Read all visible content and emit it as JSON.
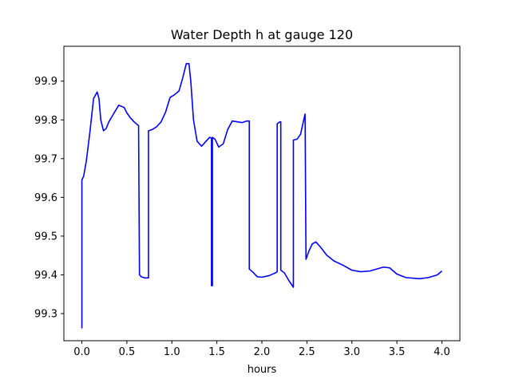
{
  "chart_data": {
    "type": "line",
    "title": "Water Depth h at gauge 120",
    "xlabel": "hours",
    "ylabel": "",
    "xlim": [
      -0.2,
      4.2
    ],
    "ylim": [
      99.23,
      99.99
    ],
    "xticks": [
      0.0,
      0.5,
      1.0,
      1.5,
      2.0,
      2.5,
      3.0,
      3.5,
      4.0
    ],
    "xtick_labels": [
      "0.0",
      "0.5",
      "1.0",
      "1.5",
      "2.0",
      "2.5",
      "3.0",
      "3.5",
      "4.0"
    ],
    "yticks": [
      99.3,
      99.4,
      99.5,
      99.6,
      99.7,
      99.8,
      99.9
    ],
    "ytick_labels": [
      "99.3",
      "99.4",
      "99.5",
      "99.6",
      "99.7",
      "99.8",
      "99.9"
    ],
    "grid": false,
    "line_color": "#0000ff",
    "series": [
      {
        "x": [
          0.0,
          0.0,
          0.02,
          0.05,
          0.09,
          0.13,
          0.17,
          0.19,
          0.21,
          0.24,
          0.27,
          0.3,
          0.35,
          0.41,
          0.47,
          0.5,
          0.54,
          0.58,
          0.63,
          0.64,
          0.64,
          0.66,
          0.7,
          0.74,
          0.74,
          0.78,
          0.83,
          0.88,
          0.93,
          0.98,
          1.03,
          1.08,
          1.12,
          1.16,
          1.19,
          1.21,
          1.24,
          1.28,
          1.33,
          1.38,
          1.42,
          1.44,
          1.44,
          1.45,
          1.45,
          1.48,
          1.52,
          1.57,
          1.62,
          1.67,
          1.73,
          1.78,
          1.83,
          1.86,
          1.86,
          1.9,
          1.95,
          2.0,
          2.08,
          2.15,
          2.17,
          2.17,
          2.2,
          2.21,
          2.21,
          2.25,
          2.3,
          2.35,
          2.35,
          2.39,
          2.43,
          2.46,
          2.48,
          2.49,
          2.52,
          2.56,
          2.6,
          2.65,
          2.72,
          2.8,
          2.9,
          3.0,
          3.1,
          3.2,
          3.35,
          3.42,
          3.5,
          3.6,
          3.75,
          3.85,
          3.95,
          4.0
        ],
        "y": [
          99.262,
          99.645,
          99.655,
          99.695,
          99.77,
          99.855,
          99.872,
          99.855,
          99.8,
          99.772,
          99.778,
          99.795,
          99.815,
          99.838,
          99.832,
          99.818,
          99.805,
          99.795,
          99.785,
          99.4,
          99.4,
          99.395,
          99.392,
          99.392,
          99.772,
          99.775,
          99.782,
          99.795,
          99.82,
          99.858,
          99.865,
          99.875,
          99.908,
          99.945,
          99.945,
          99.9,
          99.8,
          99.745,
          99.732,
          99.745,
          99.755,
          99.753,
          99.372,
          99.372,
          99.755,
          99.75,
          99.73,
          99.738,
          99.775,
          99.797,
          99.795,
          99.793,
          99.797,
          99.797,
          99.415,
          99.407,
          99.395,
          99.394,
          99.398,
          99.405,
          99.408,
          99.79,
          99.795,
          99.795,
          99.412,
          99.405,
          99.385,
          99.368,
          99.748,
          99.75,
          99.763,
          99.795,
          99.815,
          99.44,
          99.46,
          99.48,
          99.485,
          99.472,
          99.451,
          99.436,
          99.425,
          99.412,
          99.408,
          99.41,
          99.42,
          99.418,
          99.402,
          99.393,
          99.39,
          99.393,
          99.4,
          99.41
        ]
      }
    ]
  }
}
